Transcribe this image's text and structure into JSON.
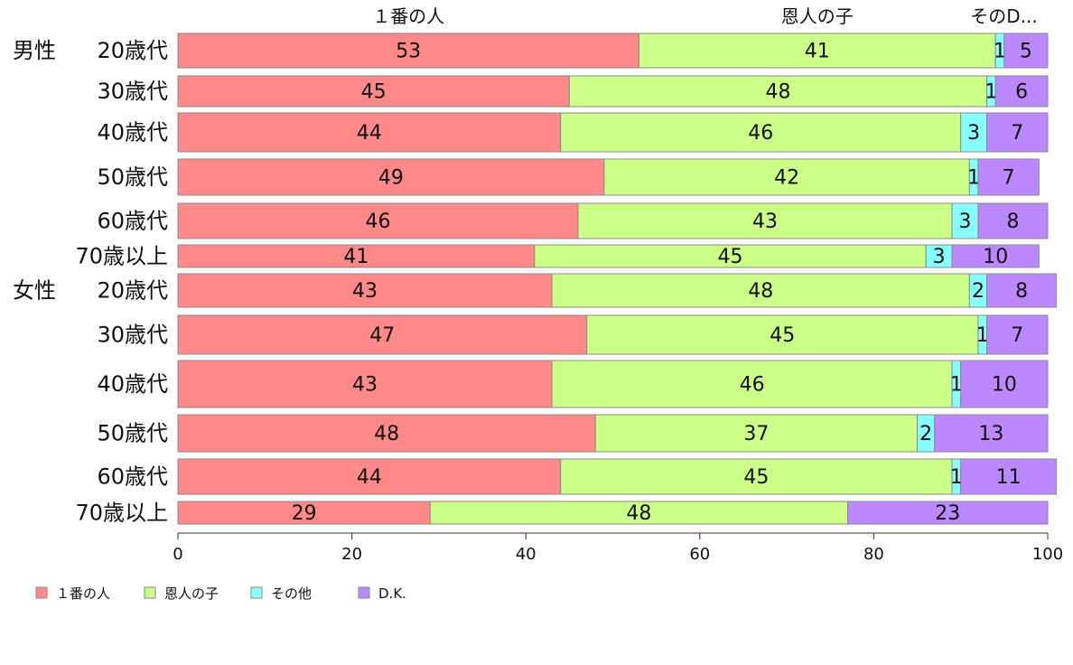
{
  "chart_data": {
    "type": "bar",
    "orientation": "horizontal",
    "stacked": true,
    "xlim": [
      0,
      100
    ],
    "x_ticks": [
      0,
      20,
      40,
      60,
      80,
      100
    ],
    "top_labels": [
      "１番の人",
      "恩人の子",
      "その他",
      "D.K."
    ],
    "top_label_truncated": "そのD...",
    "groups": [
      {
        "name": "男性",
        "start_index": 0
      },
      {
        "name": "女性",
        "start_index": 6
      }
    ],
    "categories": [
      "20歳代",
      "30歳代",
      "40歳代",
      "50歳代",
      "60歳代",
      "70歳以上",
      "20歳代",
      "30歳代",
      "40歳代",
      "50歳代",
      "60歳代",
      "70歳以上"
    ],
    "series": [
      {
        "name": "１番の人",
        "color": "#ff8888",
        "values": [
          53,
          45,
          44,
          49,
          46,
          41,
          43,
          47,
          43,
          48,
          44,
          29
        ]
      },
      {
        "name": "恩人の子",
        "color": "#ccff88",
        "values": [
          41,
          48,
          46,
          42,
          43,
          45,
          48,
          45,
          46,
          37,
          45,
          48
        ]
      },
      {
        "name": "その他",
        "color": "#88ffff",
        "values": [
          1,
          1,
          3,
          1,
          3,
          3,
          2,
          1,
          1,
          2,
          1,
          0
        ]
      },
      {
        "name": "D.K.",
        "color": "#bb88ff",
        "values": [
          5,
          6,
          7,
          7,
          8,
          10,
          8,
          7,
          10,
          13,
          11,
          23
        ]
      }
    ],
    "legend_position": "bottom-left",
    "grid": false
  }
}
